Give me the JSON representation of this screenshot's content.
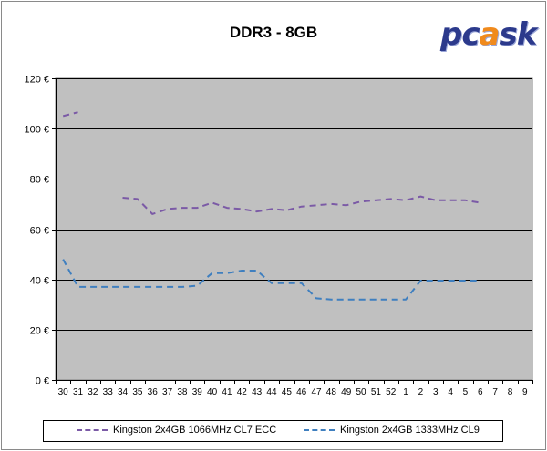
{
  "header": {
    "title": "DDR3 - 8GB",
    "logo_text_pre": "pc",
    "logo_text_mid": "a",
    "logo_text_post": "sk"
  },
  "chart_data": {
    "type": "line",
    "title": "DDR3 - 8GB",
    "xlabel": "",
    "ylabel": "",
    "x": [
      "30",
      "31",
      "32",
      "33",
      "34",
      "35",
      "36",
      "37",
      "38",
      "39",
      "40",
      "41",
      "42",
      "43",
      "44",
      "45",
      "46",
      "47",
      "48",
      "49",
      "50",
      "51",
      "52",
      "1",
      "2",
      "3",
      "4",
      "5",
      "6",
      "7",
      "8",
      "9"
    ],
    "ylim": [
      0,
      120
    ],
    "yticks": [
      0,
      20,
      40,
      60,
      80,
      100,
      120
    ],
    "ytick_labels": [
      "0 €",
      "20 €",
      "40 €",
      "60 €",
      "80 €",
      "100 €",
      "120 €"
    ],
    "grid": true,
    "legend_position": "bottom",
    "series": [
      {
        "name": "Kingston 2x4GB 1066MHz CL7 ECC",
        "color": "#7b5aa6",
        "values": [
          105,
          106.5,
          null,
          null,
          72.5,
          72,
          66,
          68,
          68.5,
          68.5,
          70.5,
          68.5,
          68,
          67,
          68,
          67.5,
          69,
          69.5,
          70,
          69.5,
          71,
          71.5,
          72,
          71.5,
          73,
          71.5,
          71.5,
          71.5,
          70.5,
          null,
          null,
          null
        ]
      },
      {
        "name": "Kingston 2x4GB 1333MHz CL9",
        "color": "#3f7fbf",
        "values": [
          48,
          37,
          37,
          37,
          37,
          37,
          37,
          37,
          37,
          37.5,
          42.5,
          42.5,
          43.5,
          43.5,
          38.5,
          38.5,
          38.5,
          32.5,
          32,
          32,
          32,
          32,
          32,
          32,
          39.5,
          39.5,
          39.5,
          39.5,
          39.5,
          null,
          null,
          null
        ]
      }
    ],
    "colors": {
      "plot_bg": "#c0c0c0",
      "grid": "#000000"
    }
  }
}
